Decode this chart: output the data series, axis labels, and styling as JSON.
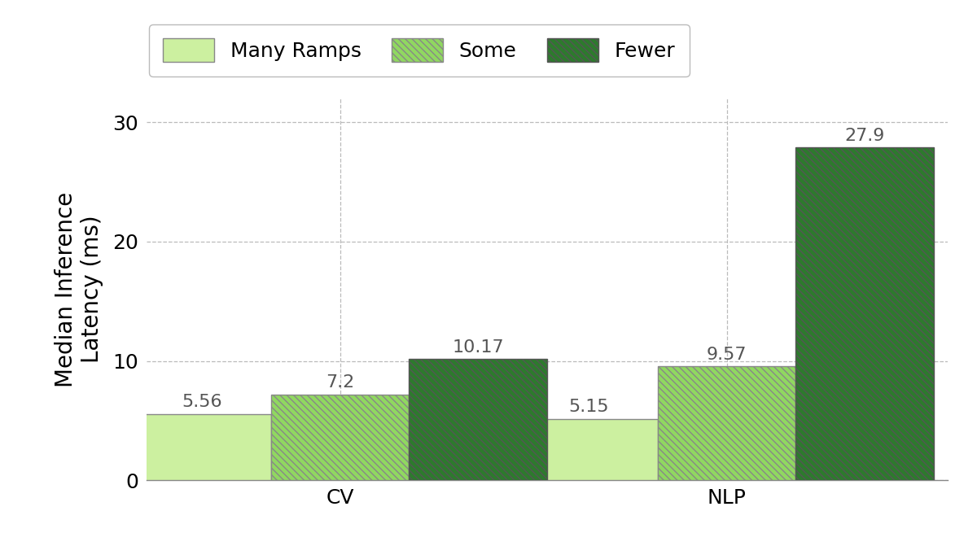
{
  "categories": [
    "CV",
    "NLP"
  ],
  "series": {
    "Many Ramps": [
      5.56,
      5.15
    ],
    "Some": [
      7.2,
      9.57
    ],
    "Fewer": [
      10.17,
      27.9
    ]
  },
  "colors": {
    "Many Ramps": "#ccf0a0",
    "Some": "#90d860",
    "Fewer": "#2d7a2d"
  },
  "hatch": {
    "Many Ramps": "",
    "Some": "\\\\\\\\",
    "Fewer": "\\\\\\\\"
  },
  "edge_colors": {
    "Many Ramps": "#888888",
    "Some": "#888888",
    "Fewer": "#555555"
  },
  "ylabel": "Median Inference\nLatency (ms)",
  "ylim": [
    0,
    32
  ],
  "yticks": [
    0,
    10,
    20,
    30
  ],
  "bar_width": 0.25,
  "legend_labels": [
    "Many Ramps",
    "Some",
    "Fewer"
  ],
  "label_fontsize": 20,
  "tick_fontsize": 18,
  "annotation_fontsize": 16,
  "legend_fontsize": 18,
  "background_color": "#ffffff",
  "grid_color": "#bbbbbb"
}
